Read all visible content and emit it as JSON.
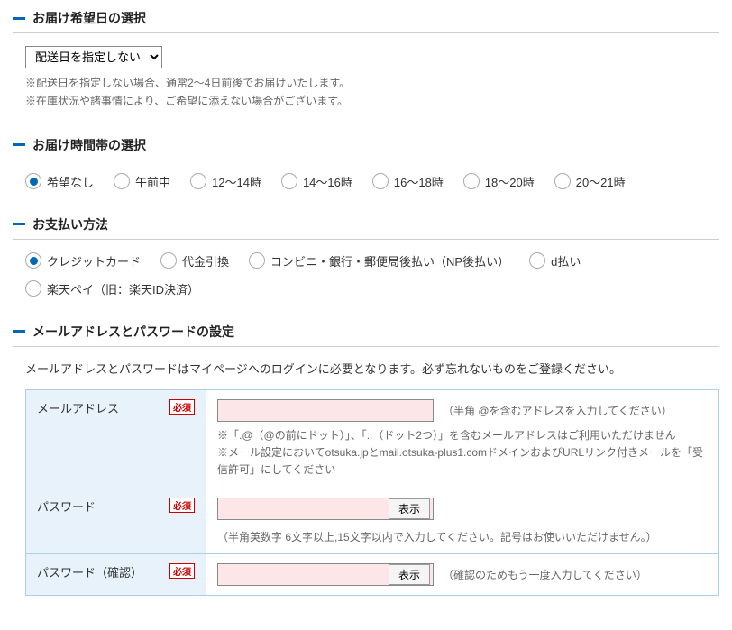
{
  "delivery_date": {
    "title": "お届け希望日の選択",
    "select_value": "配送日を指定しない",
    "note1": "※配送日を指定しない場合、通常2～4日前後でお届けいたします。",
    "note2": "※在庫状況や諸事情により、ご希望に添えない場合がございます。"
  },
  "delivery_time": {
    "title": "お届け時間帯の選択",
    "options": [
      {
        "label": "希望なし",
        "checked": true
      },
      {
        "label": "午前中",
        "checked": false
      },
      {
        "label": "12～14時",
        "checked": false
      },
      {
        "label": "14～16時",
        "checked": false
      },
      {
        "label": "16～18時",
        "checked": false
      },
      {
        "label": "18～20時",
        "checked": false
      },
      {
        "label": "20～21時",
        "checked": false
      }
    ]
  },
  "payment": {
    "title": "お支払い方法",
    "options_row1": [
      {
        "label": "クレジットカード",
        "checked": true
      },
      {
        "label": "代金引換",
        "checked": false
      },
      {
        "label": "コンビニ・銀行・郵便局後払い（NP後払い）",
        "checked": false
      },
      {
        "label": "d払い",
        "checked": false
      }
    ],
    "options_row2": [
      {
        "label": "楽天ペイ（旧：楽天ID決済）",
        "checked": false
      }
    ]
  },
  "account": {
    "title": "メールアドレスとパスワードの設定",
    "instruction": "メールアドレスとパスワードはマイページへのログインに必要となります。必ず忘れないものをご登録ください。",
    "required_label": "必須",
    "email": {
      "label": "メールアドレス",
      "help": "（半角 @を含むアドレスを入力してください）",
      "note1": "※「.@（@の前にドット）」、「..（ドット2つ）」を含むメールアドレスはご利用いただけません",
      "note2": "※メール設定においてotsuka.jpとmail.otsuka-plus1.comドメインおよびURLリンク付きメールを「受信許可」にしてください"
    },
    "password": {
      "label": "パスワード",
      "show_btn": "表示",
      "help": "（半角英数字 6文字以上,15文字以内で入力してください。記号はお使いいただけません。）"
    },
    "password_confirm": {
      "label": "パスワード（確認）",
      "show_btn": "表示",
      "help": "（確認のためもう一度入力してください）"
    }
  }
}
